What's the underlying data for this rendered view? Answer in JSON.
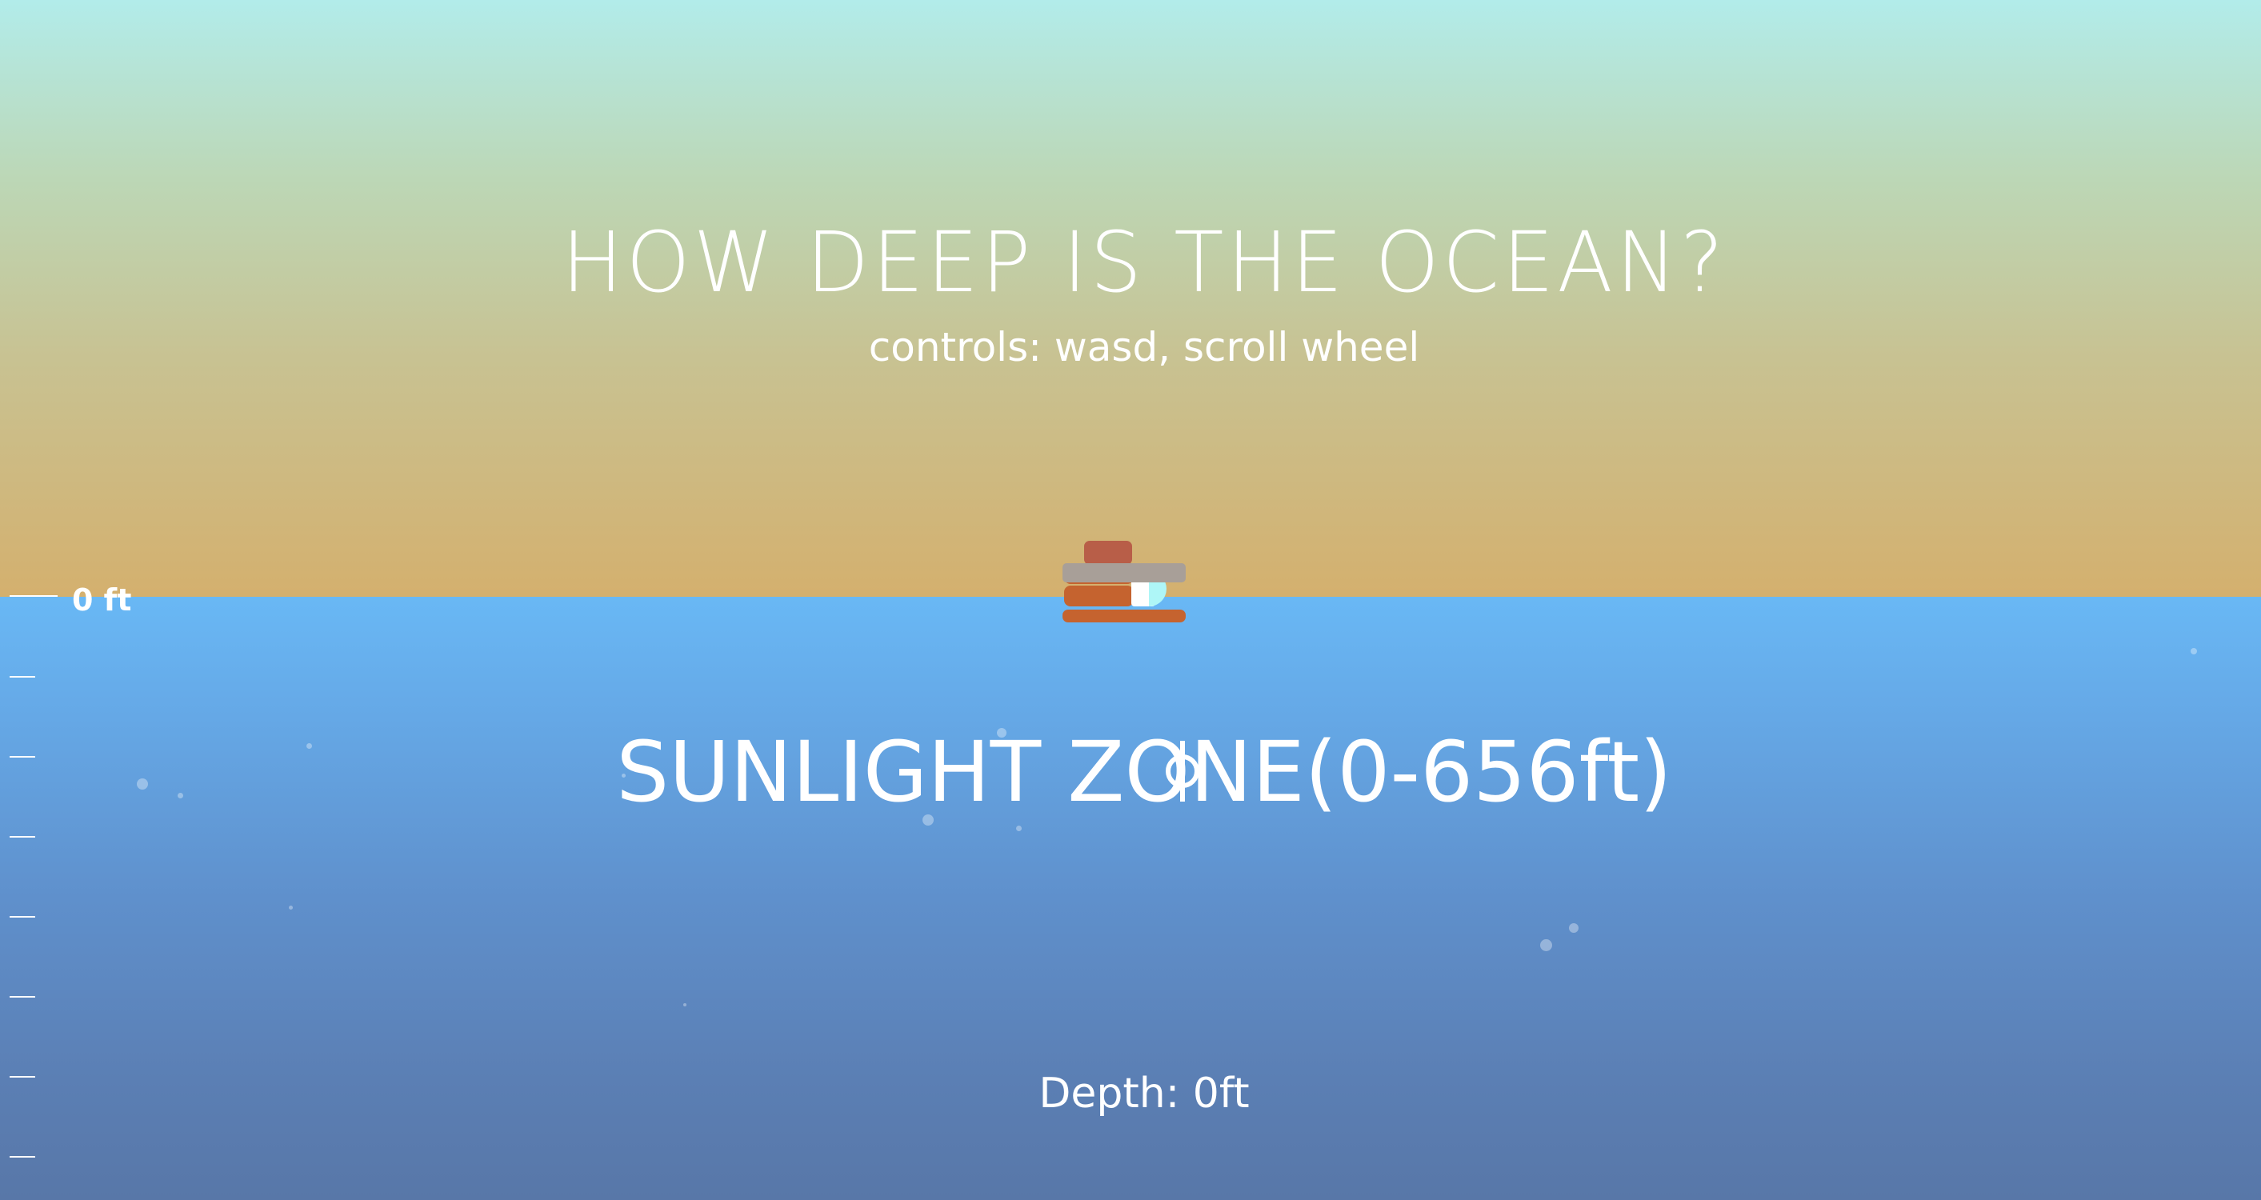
{
  "header": {
    "title": "HOW DEEP IS THE OCEAN?",
    "controls_hint": "controls: wasd, scroll wheel"
  },
  "zone": {
    "label": "SUNLIGHT ZONE(0-656ft)"
  },
  "depth": {
    "readout": "Depth: 0ft"
  },
  "ruler": {
    "surface_label": "0 ft"
  },
  "player": {
    "icon": "submarine-icon"
  },
  "cursor": {
    "icon": "crosshair-icon"
  },
  "colors": {
    "sky_top": "#b2ecea",
    "sky_bottom": "#d4b06e",
    "water_top": "#69b8f5",
    "water_bottom": "#5877a8",
    "sub_hull": "#c5632f",
    "sub_tower": "#b85e48",
    "sub_deck": "#a89f98",
    "sub_window": "#aef6f7"
  }
}
